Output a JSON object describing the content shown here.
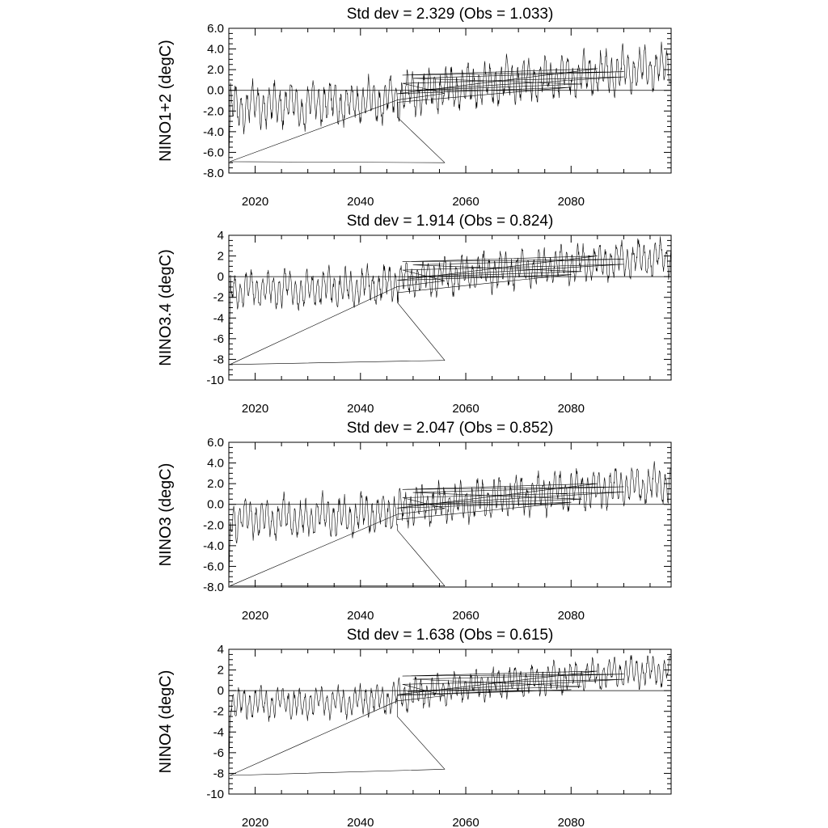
{
  "chart_data": [
    {
      "type": "line",
      "title": "Std dev = 2.329 (Obs = 1.033)",
      "ylabel": "NINO1+2 (degC)",
      "xlim": [
        2015,
        2099
      ],
      "ylim": [
        -8,
        6
      ],
      "xticks": [
        2020,
        2040,
        2060,
        2080
      ],
      "yticks": [
        -8,
        -6,
        -4,
        -2,
        0,
        2,
        4,
        6
      ],
      "ytick_labels": [
        "-8.0",
        "-6.0",
        "-4.0",
        "-2.0",
        "0.0",
        "2.0",
        "4.0",
        "6.0"
      ],
      "params": {
        "amp": 2.0,
        "drop": -6.9,
        "dropEnd": -7.0,
        "tStart": -1.5,
        "tEnd": 2.3,
        "loopShift": 0.9
      },
      "series": [
        {
          "x": [
            2015,
            2017,
            2020,
            2023,
            2026,
            2029,
            2032,
            2035,
            2038,
            2041,
            2044,
            2047,
            2050,
            2053,
            2056,
            2059,
            2062,
            2065,
            2068,
            2071,
            2074,
            2077,
            2080,
            2083,
            2086,
            2089,
            2092,
            2095,
            2098
          ],
          "y": [
            -1.2,
            -1.8,
            -1.3,
            -1.6,
            -1.2,
            -1.9,
            -1.0,
            -1.3,
            -1.4,
            -0.9,
            -1.1,
            -0.6,
            -0.3,
            -0.1,
            0.1,
            0.2,
            0.5,
            0.6,
            0.9,
            1.0,
            1.1,
            1.3,
            1.4,
            1.5,
            1.7,
            1.8,
            2.0,
            2.1,
            2.3
          ]
        }
      ]
    },
    {
      "type": "line",
      "title": "Std dev = 1.914 (Obs = 0.824)",
      "ylabel": "NINO3.4 (degC)",
      "xlim": [
        2015,
        2099
      ],
      "ylim": [
        -10,
        4
      ],
      "xticks": [
        2020,
        2040,
        2060,
        2080
      ],
      "yticks": [
        -10,
        -8,
        -6,
        -4,
        -2,
        0,
        2,
        4
      ],
      "ytick_labels": [
        "-10",
        "-8",
        "-6",
        "-4",
        "-2",
        "0",
        "2",
        "4"
      ],
      "params": {
        "amp": 1.7,
        "drop": -8.5,
        "dropEnd": -8.1,
        "tStart": -1.3,
        "tEnd": 1.9,
        "loopShift": 0.8
      },
      "series": [
        {
          "x": [
            2015,
            2017,
            2020,
            2023,
            2026,
            2029,
            2032,
            2035,
            2038,
            2041,
            2044,
            2047,
            2050,
            2053,
            2056,
            2059,
            2062,
            2065,
            2068,
            2071,
            2074,
            2077,
            2080,
            2083,
            2086,
            2089,
            2092,
            2095,
            2098
          ],
          "y": [
            -1.0,
            -1.5,
            -1.1,
            -1.4,
            -1.0,
            -1.6,
            -0.9,
            -1.1,
            -1.2,
            -0.8,
            -0.9,
            -0.5,
            -0.2,
            -0.1,
            0.1,
            0.2,
            0.4,
            0.5,
            0.7,
            0.8,
            0.9,
            1.1,
            1.2,
            1.3,
            1.4,
            1.5,
            1.7,
            1.8,
            1.9
          ]
        }
      ]
    },
    {
      "type": "line",
      "title": "Std dev = 2.047 (Obs = 0.852)",
      "ylabel": "NINO3 (degC)",
      "xlim": [
        2015,
        2099
      ],
      "ylim": [
        -8,
        6
      ],
      "xticks": [
        2020,
        2040,
        2060,
        2080
      ],
      "yticks": [
        -8,
        -6,
        -4,
        -2,
        0,
        2,
        4,
        6
      ],
      "ytick_labels": [
        "-8.0",
        "-6.0",
        "-4.0",
        "-2.0",
        "0.0",
        "2.0",
        "4.0",
        "6.0"
      ],
      "params": {
        "amp": 1.8,
        "drop": -7.9,
        "dropEnd": -7.9,
        "tStart": -1.4,
        "tEnd": 2.0,
        "loopShift": 0.8
      },
      "series": [
        {
          "x": [
            2015,
            2017,
            2020,
            2023,
            2026,
            2029,
            2032,
            2035,
            2038,
            2041,
            2044,
            2047,
            2050,
            2053,
            2056,
            2059,
            2062,
            2065,
            2068,
            2071,
            2074,
            2077,
            2080,
            2083,
            2086,
            2089,
            2092,
            2095,
            2098
          ],
          "y": [
            -1.1,
            -1.6,
            -1.2,
            -1.5,
            -1.1,
            -1.7,
            -0.9,
            -1.2,
            -1.3,
            -0.8,
            -1.0,
            -0.5,
            -0.2,
            -0.1,
            0.1,
            0.2,
            0.4,
            0.6,
            0.8,
            0.9,
            1.0,
            1.2,
            1.3,
            1.4,
            1.5,
            1.6,
            1.8,
            1.9,
            2.0
          ]
        }
      ]
    },
    {
      "type": "line",
      "title": "Std dev = 1.638 (Obs = 0.615)",
      "ylabel": "NINO4 (degC)",
      "xlim": [
        2015,
        2099
      ],
      "ylim": [
        -10,
        4
      ],
      "xticks": [
        2020,
        2040,
        2060,
        2080
      ],
      "yticks": [
        -10,
        -8,
        -6,
        -4,
        -2,
        0,
        2,
        4
      ],
      "ytick_labels": [
        "-10",
        "-8",
        "-6",
        "-4",
        "-2",
        "0",
        "2",
        "4"
      ],
      "params": {
        "amp": 1.4,
        "drop": -8.2,
        "dropEnd": -7.6,
        "tStart": -1.2,
        "tEnd": 2.0,
        "loopShift": 0.7
      },
      "series": [
        {
          "x": [
            2015,
            2017,
            2020,
            2023,
            2026,
            2029,
            2032,
            2035,
            2038,
            2041,
            2044,
            2047,
            2050,
            2053,
            2056,
            2059,
            2062,
            2065,
            2068,
            2071,
            2074,
            2077,
            2080,
            2083,
            2086,
            2089,
            2092,
            2095,
            2098
          ],
          "y": [
            -1.0,
            -1.4,
            -1.1,
            -1.3,
            -1.0,
            -1.5,
            -0.9,
            -1.1,
            -1.2,
            -0.8,
            -0.9,
            -0.5,
            -0.3,
            -0.1,
            0.1,
            0.3,
            0.5,
            0.6,
            0.8,
            0.9,
            1.0,
            1.2,
            1.3,
            1.4,
            1.6,
            1.7,
            1.8,
            1.9,
            2.0
          ]
        }
      ]
    }
  ]
}
